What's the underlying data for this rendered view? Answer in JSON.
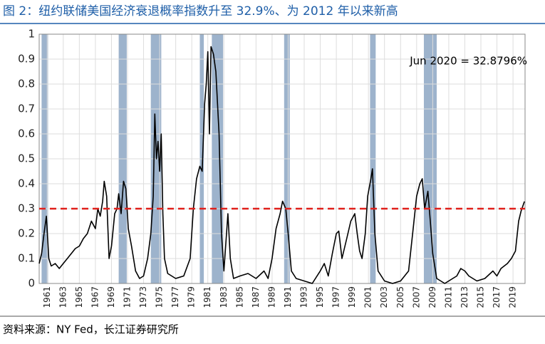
{
  "chart_data": {
    "type": "line",
    "title": "图 2：纽约联储美国经济衰退概率指数升至 32.9%、为 2012 年以来新高",
    "source": "资料来源：NY Fed，长江证券研究所",
    "annotation": "Jun 2020 = 32.8796%",
    "x": [
      1960.0,
      1960.3,
      1960.6,
      1960.9,
      1961.2,
      1961.5,
      1962,
      1962.5,
      1963,
      1963.5,
      1964,
      1964.5,
      1965,
      1965.5,
      1966,
      1966.5,
      1967,
      1967.3,
      1967.6,
      1967.9,
      1968.1,
      1968.4,
      1968.7,
      1969,
      1969.4,
      1969.7,
      1969.9,
      1970.2,
      1970.5,
      1970.8,
      1971.1,
      1971.5,
      1972,
      1972.5,
      1973,
      1973.5,
      1973.9,
      1974.2,
      1974.4,
      1974.6,
      1974.8,
      1975.0,
      1975.2,
      1975.4,
      1975.6,
      1976,
      1977,
      1978,
      1978.8,
      1979.2,
      1979.6,
      1980.0,
      1980.3,
      1980.6,
      1980.8,
      1981.0,
      1981.2,
      1981.4,
      1981.7,
      1982.0,
      1982.4,
      1982.7,
      1983.0,
      1983.5,
      1983.8,
      1984.2,
      1985,
      1986,
      1987,
      1988,
      1988.5,
      1989,
      1989.5,
      1990,
      1990.3,
      1990.7,
      1991.0,
      1991.4,
      1992,
      1993,
      1994,
      1995,
      1995.5,
      1996,
      1996.5,
      1997,
      1997.3,
      1997.7,
      1998.3,
      1998.8,
      1999.3,
      1999.6,
      1999.9,
      2000.2,
      2000.6,
      2000.9,
      2001.3,
      2001.5,
      2001.8,
      2002.2,
      2003,
      2004,
      2005,
      2006,
      2006.5,
      2007.0,
      2007.4,
      2007.7,
      2008.0,
      2008.4,
      2008.7,
      2009.0,
      2009.5,
      2010.5,
      2011.5,
      2012.0,
      2012.5,
      2013.0,
      2013.5,
      2014.5,
      2015.5,
      2016.5,
      2017.0,
      2017.5,
      2018.3,
      2018.8,
      2019.3,
      2019.7,
      2020.0,
      2020.42
    ],
    "series": [
      {
        "color": "#000000",
        "values": [
          0.08,
          0.12,
          0.2,
          0.27,
          0.1,
          0.07,
          0.08,
          0.06,
          0.08,
          0.1,
          0.12,
          0.14,
          0.15,
          0.18,
          0.2,
          0.25,
          0.22,
          0.3,
          0.27,
          0.33,
          0.41,
          0.35,
          0.1,
          0.15,
          0.28,
          0.3,
          0.36,
          0.28,
          0.41,
          0.38,
          0.22,
          0.15,
          0.05,
          0.02,
          0.03,
          0.1,
          0.2,
          0.35,
          0.68,
          0.5,
          0.57,
          0.45,
          0.6,
          0.28,
          0.1,
          0.04,
          0.02,
          0.03,
          0.1,
          0.3,
          0.42,
          0.47,
          0.45,
          0.72,
          0.8,
          0.93,
          0.6,
          0.95,
          0.92,
          0.85,
          0.6,
          0.2,
          0.05,
          0.28,
          0.1,
          0.02,
          0.03,
          0.04,
          0.02,
          0.05,
          0.02,
          0.1,
          0.22,
          0.28,
          0.33,
          0.3,
          0.2,
          0.05,
          0.02,
          0.01,
          0.0,
          0.05,
          0.08,
          0.03,
          0.12,
          0.2,
          0.21,
          0.1,
          0.18,
          0.25,
          0.28,
          0.2,
          0.13,
          0.1,
          0.2,
          0.35,
          0.42,
          0.46,
          0.2,
          0.05,
          0.01,
          0.0,
          0.01,
          0.05,
          0.2,
          0.35,
          0.4,
          0.42,
          0.3,
          0.37,
          0.25,
          0.12,
          0.02,
          0.0,
          0.02,
          0.03,
          0.06,
          0.05,
          0.03,
          0.01,
          0.02,
          0.05,
          0.03,
          0.06,
          0.08,
          0.1,
          0.13,
          0.25,
          0.29,
          0.328796
        ]
      }
    ],
    "recessions": [
      [
        1960.3,
        1961.1
      ],
      [
        1969.9,
        1970.9
      ],
      [
        1973.9,
        1975.2
      ],
      [
        1980.0,
        1980.5
      ],
      [
        1981.5,
        1982.9
      ],
      [
        1990.5,
        1991.2
      ],
      [
        2001.2,
        2001.9
      ],
      [
        2007.9,
        2009.5
      ]
    ],
    "recession_color": "#9db3cc",
    "threshold": 0.3,
    "threshold_color": "#e0201b",
    "xlim": [
      1960,
      2020.5
    ],
    "ylim": [
      0,
      1
    ],
    "xticks": [
      1961,
      1963,
      1965,
      1967,
      1969,
      1971,
      1973,
      1975,
      1977,
      1979,
      1981,
      1983,
      1985,
      1987,
      1989,
      1991,
      1993,
      1995,
      1997,
      1999,
      2001,
      2003,
      2005,
      2007,
      2009,
      2011,
      2013,
      2015,
      2017,
      2019
    ],
    "yticks": [
      0,
      0.1,
      0.2,
      0.3,
      0.4,
      0.5,
      0.6,
      0.7,
      0.8,
      0.9,
      1
    ],
    "grid": true
  }
}
